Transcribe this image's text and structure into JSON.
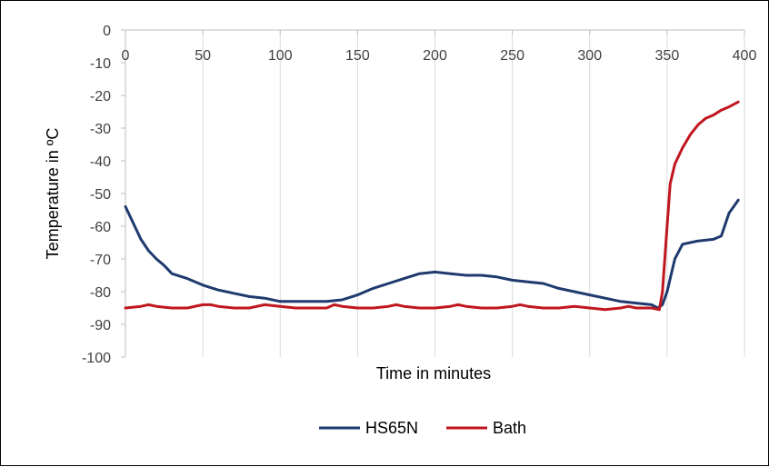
{
  "chart_data": {
    "type": "line",
    "title": "",
    "xlabel": "Time in minutes",
    "ylabel": "Temperature in ºC",
    "xlim": [
      0,
      400
    ],
    "ylim": [
      -100,
      0
    ],
    "x_ticks": [
      0,
      50,
      100,
      150,
      200,
      250,
      300,
      350,
      400
    ],
    "y_ticks": [
      0,
      -10,
      -20,
      -30,
      -40,
      -50,
      -60,
      -70,
      -80,
      -90,
      -100
    ],
    "grid": "vertical",
    "legend_position": "bottom",
    "series": [
      {
        "name": "HS65N",
        "color": "#1f3a6e",
        "points": [
          [
            0,
            -54
          ],
          [
            5,
            -59
          ],
          [
            10,
            -64
          ],
          [
            15,
            -67.5
          ],
          [
            20,
            -70
          ],
          [
            25,
            -72
          ],
          [
            30,
            -74.5
          ],
          [
            40,
            -76
          ],
          [
            50,
            -78
          ],
          [
            60,
            -79.5
          ],
          [
            70,
            -80.5
          ],
          [
            80,
            -81.5
          ],
          [
            90,
            -82
          ],
          [
            100,
            -83
          ],
          [
            110,
            -83
          ],
          [
            120,
            -83
          ],
          [
            130,
            -83
          ],
          [
            140,
            -82.5
          ],
          [
            150,
            -81
          ],
          [
            160,
            -79
          ],
          [
            170,
            -77.5
          ],
          [
            180,
            -76
          ],
          [
            190,
            -74.5
          ],
          [
            200,
            -74
          ],
          [
            210,
            -74.5
          ],
          [
            220,
            -75
          ],
          [
            230,
            -75
          ],
          [
            240,
            -75.5
          ],
          [
            250,
            -76.5
          ],
          [
            260,
            -77
          ],
          [
            270,
            -77.5
          ],
          [
            280,
            -79
          ],
          [
            290,
            -80
          ],
          [
            300,
            -81
          ],
          [
            310,
            -82
          ],
          [
            320,
            -83
          ],
          [
            330,
            -83.5
          ],
          [
            340,
            -84
          ],
          [
            344,
            -85
          ],
          [
            347,
            -84
          ],
          [
            350,
            -80
          ],
          [
            355,
            -70
          ],
          [
            360,
            -65.5
          ],
          [
            365,
            -65
          ],
          [
            370,
            -64.5
          ],
          [
            380,
            -64
          ],
          [
            385,
            -63
          ],
          [
            390,
            -56
          ],
          [
            396,
            -52
          ]
        ]
      },
      {
        "name": "Bath",
        "color": "#c0171f",
        "points": [
          [
            0,
            -85
          ],
          [
            10,
            -84.5
          ],
          [
            15,
            -84
          ],
          [
            20,
            -84.5
          ],
          [
            30,
            -85
          ],
          [
            40,
            -85
          ],
          [
            50,
            -84
          ],
          [
            55,
            -84
          ],
          [
            60,
            -84.5
          ],
          [
            70,
            -85
          ],
          [
            80,
            -85
          ],
          [
            90,
            -84
          ],
          [
            100,
            -84.5
          ],
          [
            110,
            -85
          ],
          [
            120,
            -85
          ],
          [
            130,
            -85
          ],
          [
            135,
            -84
          ],
          [
            140,
            -84.5
          ],
          [
            150,
            -85
          ],
          [
            160,
            -85
          ],
          [
            170,
            -84.5
          ],
          [
            175,
            -84
          ],
          [
            180,
            -84.5
          ],
          [
            190,
            -85
          ],
          [
            200,
            -85
          ],
          [
            210,
            -84.5
          ],
          [
            215,
            -84
          ],
          [
            220,
            -84.5
          ],
          [
            230,
            -85
          ],
          [
            240,
            -85
          ],
          [
            250,
            -84.5
          ],
          [
            255,
            -84
          ],
          [
            260,
            -84.5
          ],
          [
            270,
            -85
          ],
          [
            280,
            -85
          ],
          [
            290,
            -84.5
          ],
          [
            300,
            -85
          ],
          [
            310,
            -85.5
          ],
          [
            320,
            -85
          ],
          [
            325,
            -84.5
          ],
          [
            330,
            -85
          ],
          [
            340,
            -85
          ],
          [
            345,
            -85.5
          ],
          [
            347,
            -80
          ],
          [
            350,
            -60
          ],
          [
            352,
            -47
          ],
          [
            355,
            -41
          ],
          [
            360,
            -36
          ],
          [
            365,
            -32
          ],
          [
            370,
            -29
          ],
          [
            375,
            -27
          ],
          [
            380,
            -26
          ],
          [
            385,
            -24.5
          ],
          [
            390,
            -23.5
          ],
          [
            396,
            -22
          ]
        ]
      }
    ]
  }
}
